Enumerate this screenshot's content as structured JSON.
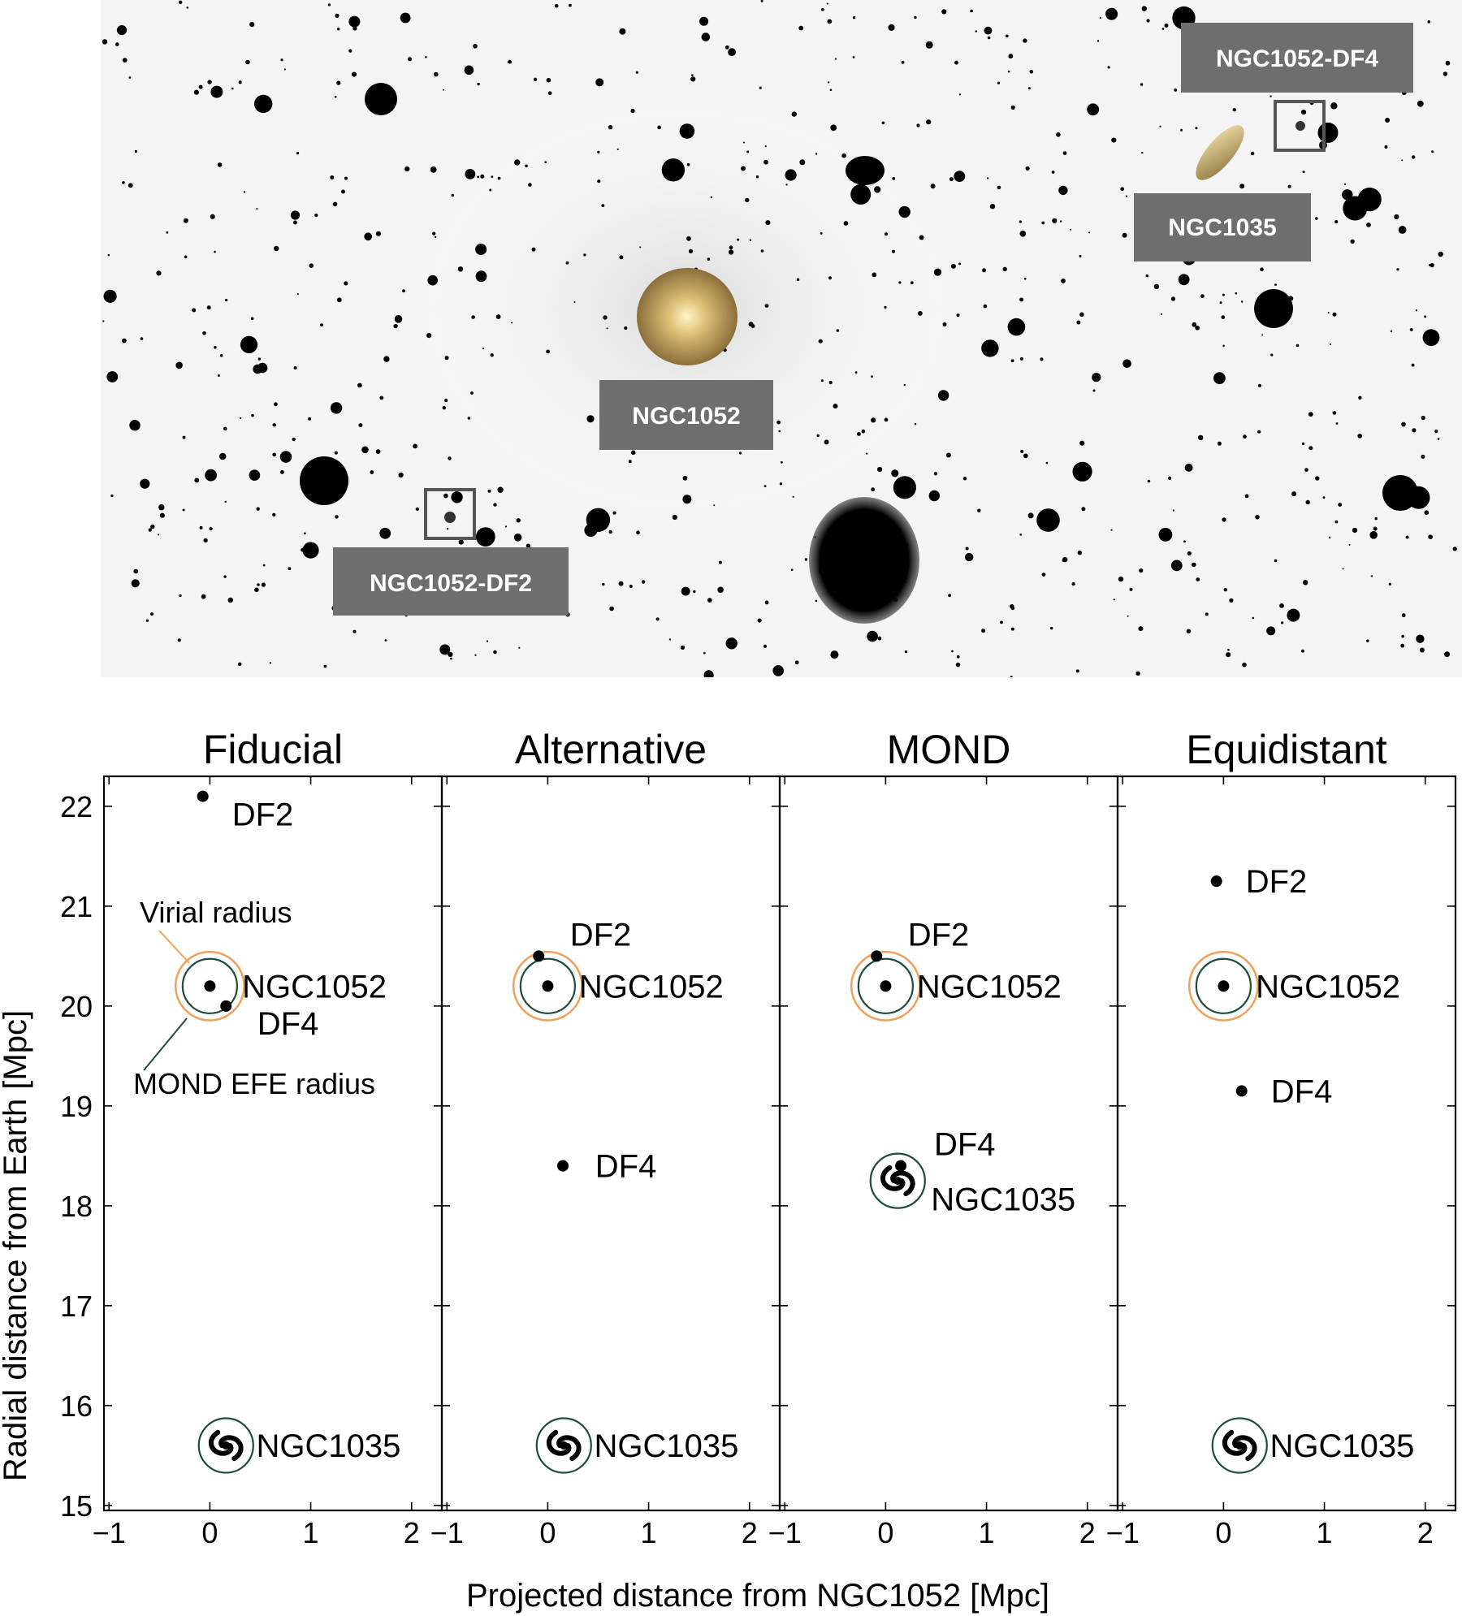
{
  "image": {
    "labels": [
      {
        "key": "df4",
        "text": "NGC1052-DF4"
      },
      {
        "key": "ngc1035",
        "text": "NGC1035"
      },
      {
        "key": "ngc1052",
        "text": "NGC1052"
      },
      {
        "key": "df2",
        "text": "NGC1052-DF2"
      }
    ]
  },
  "colors": {
    "virial": "#f0a05a",
    "efe": "#1e4d3e",
    "label_box": "#6e6e6e"
  },
  "chart_data": {
    "type": "scatter",
    "xlabel": "Projected distance from NGC1052 [Mpc]",
    "ylabel": "Radial distance from Earth [Mpc]",
    "xlim": [
      -1.05,
      2.3
    ],
    "ylim": [
      14.95,
      22.3
    ],
    "xticks": [
      -1,
      0,
      1,
      2
    ],
    "yticks": [
      15,
      16,
      17,
      18,
      19,
      20,
      21,
      22
    ],
    "annotations": {
      "virial": "Virial radius",
      "efe": "MOND EFE radius"
    },
    "panels": [
      {
        "title": "Fiducial",
        "points": [
          {
            "name": "DF2",
            "x": -0.07,
            "y": 22.1
          },
          {
            "name": "NGC1052",
            "x": 0.0,
            "y": 20.2
          },
          {
            "name": "DF4",
            "x": 0.16,
            "y": 20.0
          }
        ],
        "ngc1035": {
          "name": "NGC1035",
          "x": 0.16,
          "y": 15.6
        },
        "labels": [
          {
            "text": "DF2",
            "x": 0.22,
            "y": 21.92
          },
          {
            "text": "NGC1052",
            "x": 0.32,
            "y": 20.2
          },
          {
            "text": "DF4",
            "x": 0.47,
            "y": 19.83
          },
          {
            "text": "NGC1035",
            "x": 0.46,
            "y": 15.6
          }
        ]
      },
      {
        "title": "Alternative",
        "points": [
          {
            "name": "DF2",
            "x": -0.09,
            "y": 20.5
          },
          {
            "name": "NGC1052",
            "x": 0.0,
            "y": 20.2
          },
          {
            "name": "DF4",
            "x": 0.15,
            "y": 18.4
          }
        ],
        "ngc1035": {
          "name": "NGC1035",
          "x": 0.16,
          "y": 15.6
        },
        "labels": [
          {
            "text": "DF2",
            "x": 0.22,
            "y": 20.72
          },
          {
            "text": "NGC1052",
            "x": 0.31,
            "y": 20.2
          },
          {
            "text": "DF4",
            "x": 0.47,
            "y": 18.4
          },
          {
            "text": "NGC1035",
            "x": 0.46,
            "y": 15.6
          }
        ]
      },
      {
        "title": "MOND",
        "points": [
          {
            "name": "DF2",
            "x": -0.09,
            "y": 20.5
          },
          {
            "name": "NGC1052",
            "x": 0.0,
            "y": 20.2
          },
          {
            "name": "DF4",
            "x": 0.15,
            "y": 18.4
          }
        ],
        "ngc1035": {
          "name": "NGC1035",
          "x": 0.12,
          "y": 18.25
        },
        "labels": [
          {
            "text": "DF2",
            "x": 0.22,
            "y": 20.72
          },
          {
            "text": "NGC1052",
            "x": 0.31,
            "y": 20.2
          },
          {
            "text": "DF4",
            "x": 0.48,
            "y": 18.62
          },
          {
            "text": "NGC1035",
            "x": 0.45,
            "y": 18.07
          }
        ]
      },
      {
        "title": "Equidistant",
        "points": [
          {
            "name": "DF2",
            "x": -0.07,
            "y": 21.25
          },
          {
            "name": "NGC1052",
            "x": 0.0,
            "y": 20.2
          },
          {
            "name": "DF4",
            "x": 0.18,
            "y": 19.15
          }
        ],
        "ngc1035": {
          "name": "NGC1035",
          "x": 0.16,
          "y": 15.6
        },
        "labels": [
          {
            "text": "DF2",
            "x": 0.22,
            "y": 21.25
          },
          {
            "text": "NGC1052",
            "x": 0.32,
            "y": 20.2
          },
          {
            "text": "DF4",
            "x": 0.47,
            "y": 19.15
          },
          {
            "text": "NGC1035",
            "x": 0.46,
            "y": 15.6
          }
        ]
      }
    ]
  }
}
